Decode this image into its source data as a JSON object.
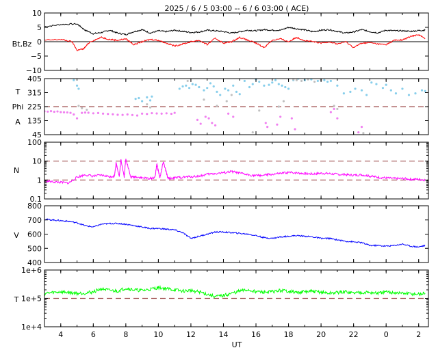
{
  "title": "2025 /  6 /  5   03:00 -- 6 /  6   03:00 ( ACE)",
  "xlabel": "UT",
  "x_ticks": [
    "4",
    "6",
    "8",
    "10",
    "12",
    "14",
    "16",
    "18",
    "20",
    "22",
    "0",
    "2"
  ],
  "x_tick_hours": [
    4,
    6,
    8,
    10,
    12,
    14,
    16,
    18,
    20,
    22,
    24,
    26
  ],
  "x_range_hours": [
    3,
    26.6
  ],
  "colors": {
    "bt": "#000000",
    "bz": "#ff0000",
    "theta": "#f080f0",
    "phi": "#87ceeb",
    "phi_gray": "#c0c0c0",
    "density": "#ff00ff",
    "speed": "#0000ff",
    "temperature": "#00ff00",
    "ref_line": "#a05050",
    "zero_line": "#000000"
  },
  "chart_data": [
    {
      "type": "line",
      "panel": "Bt,Bz",
      "ylabel": "Bt,Bz",
      "ylim": [
        -10,
        10
      ],
      "y_ticks": [
        "10",
        "5",
        "0",
        "−5",
        "−10"
      ],
      "y_tick_values": [
        10,
        5,
        0,
        -5,
        -10
      ],
      "zero_line": 0,
      "series": [
        {
          "name": "Bt",
          "color_key": "bt",
          "x": [
            3,
            4,
            5,
            5.5,
            6,
            6.5,
            7,
            7.5,
            8,
            8.5,
            9,
            9.5,
            10,
            10.5,
            11,
            11.5,
            12,
            12.5,
            13,
            13.5,
            14,
            14.5,
            15,
            15.5,
            16,
            16.5,
            17,
            17.5,
            18,
            18.5,
            19,
            19.5,
            20,
            20.5,
            21,
            21.5,
            22,
            22.5,
            23,
            23.5,
            24,
            24.5,
            25,
            25.5,
            26,
            26.4
          ],
          "y": [
            5.2,
            6,
            6.2,
            4,
            2.8,
            3.2,
            4,
            3,
            2.5,
            3.5,
            4.2,
            3,
            3.8,
            3.5,
            4,
            3.6,
            3.2,
            3.4,
            4,
            3.8,
            3.5,
            3,
            3.5,
            4,
            3.8,
            4.2,
            4,
            4,
            5,
            4.5,
            4.1,
            3.5,
            4,
            4.2,
            3.6,
            3,
            3.4,
            4.2,
            3.5,
            3.1,
            4,
            3.8,
            3.8,
            3.6,
            3.9,
            4
          ]
        },
        {
          "name": "Bz",
          "color_key": "bz",
          "x": [
            3,
            4,
            4.7,
            5,
            5.4,
            5.8,
            6.5,
            7,
            7.5,
            8,
            8.5,
            9,
            9.5,
            10,
            10.5,
            11,
            11.5,
            12,
            12.5,
            13,
            13.5,
            14,
            14.5,
            15,
            15.5,
            16,
            16.5,
            17,
            17.5,
            18,
            18.5,
            19,
            19.5,
            20,
            20.5,
            21,
            21.5,
            22,
            22.5,
            23,
            23.5,
            24,
            24.5,
            25,
            25.5,
            26,
            26.4
          ],
          "y": [
            0.5,
            0.8,
            0,
            -3,
            -2.5,
            0,
            1.5,
            0.8,
            0.5,
            1,
            -1,
            0,
            0.8,
            0.5,
            -0.5,
            -1.5,
            -0.8,
            0,
            0.5,
            -1,
            1.2,
            -0.5,
            0,
            1.5,
            0.5,
            -0.5,
            -2,
            0.5,
            1,
            0,
            1.5,
            0.4,
            0,
            -0.5,
            0,
            -0.8,
            0,
            -2,
            -0.5,
            -0.3,
            -0.8,
            -1,
            0.5,
            0.6,
            1.8,
            2.5,
            1
          ]
        }
      ]
    },
    {
      "type": "scatter",
      "panel": "T / Phi / A",
      "ylabel": [
        "T",
        "Phi",
        "A"
      ],
      "ylim": [
        45,
        405
      ],
      "y_ticks": [
        "405",
        "315",
        "225",
        "135",
        "45"
      ],
      "y_tick_values": [
        405,
        315,
        225,
        135,
        45
      ],
      "ref_lines": [
        225
      ],
      "series": [
        {
          "name": "theta",
          "color_key": "theta",
          "x": [
            3,
            3.2,
            3.4,
            3.6,
            3.8,
            4,
            4.2,
            4.4,
            4.6,
            4.8,
            5.0,
            5.3,
            5.5,
            5.7,
            6,
            6.3,
            6.6,
            6.9,
            7.2,
            7.5,
            7.8,
            8.1,
            8.4,
            8.7,
            9,
            9.3,
            9.6,
            9.9,
            10.2,
            10.5,
            10.8,
            11.0,
            12.4,
            12.6,
            12.9,
            13.1,
            13.3,
            13.5,
            14.3,
            14.6,
            16.6,
            16.7,
            17.3,
            17.5,
            18.2,
            18.4,
            20.6,
            20.8,
            21,
            22.3,
            22.5
          ],
          "y": [
            195,
            193,
            196,
            192,
            194,
            190,
            189,
            188,
            185,
            175,
            150,
            185,
            187,
            186,
            182,
            184,
            180,
            178,
            176,
            173,
            172,
            175,
            171,
            168,
            180,
            178,
            183,
            181,
            180,
            182,
            179,
            185,
            140,
            115,
            160,
            150,
            120,
            105,
            180,
            160,
            120,
            95,
            110,
            160,
            150,
            80,
            190,
            210,
            150,
            60,
            95
          ]
        },
        {
          "name": "phi",
          "color_key": "phi",
          "x": [
            4.8,
            5.0,
            5.1,
            8.6,
            8.8,
            9,
            9.3,
            9.5,
            9.6,
            11.3,
            11.5,
            11.7,
            11.9,
            12.1,
            12.3,
            12.5,
            12.8,
            13.0,
            13.2,
            13.4,
            13.6,
            13.8,
            14.1,
            14.3,
            14.6,
            14.8,
            15.0,
            15.3,
            15.6,
            15.8,
            16,
            16.2,
            16.5,
            16.8,
            17.0,
            17.2,
            17.4,
            17.6,
            17.8,
            18.0,
            18.3,
            18.6,
            19.0,
            19.4,
            19.8,
            20.2,
            20.4,
            20.6,
            21.0,
            21.4,
            21.8,
            22.1,
            22.5,
            22.8,
            23.1,
            23.4,
            23.8,
            24.0,
            24.3,
            24.6,
            25.0,
            25.4,
            25.8,
            26.2,
            26.4
          ],
          "y": [
            395,
            360,
            340,
            275,
            280,
            260,
            285,
            265,
            290,
            340,
            355,
            360,
            345,
            370,
            365,
            350,
            330,
            345,
            375,
            355,
            320,
            300,
            340,
            330,
            360,
            320,
            305,
            390,
            350,
            370,
            400,
            385,
            360,
            365,
            380,
            395,
            370,
            360,
            350,
            340,
            395,
            405,
            395,
            400,
            390,
            395,
            385,
            390,
            360,
            310,
            320,
            340,
            330,
            300,
            380,
            370,
            345,
            365,
            330,
            310,
            340,
            300,
            310,
            330,
            325
          ]
        },
        {
          "name": "phi",
          "color_key": "phi_gray",
          "x": [
            5.1,
            5.3,
            5.6,
            9.3,
            9.5,
            11.8,
            12.8,
            13.6,
            14.2,
            14.5,
            15.8,
            16.2,
            17.4,
            17.7,
            18.3,
            18.5,
            18.8,
            19.2,
            19.6,
            20.0,
            20.8,
            21.0,
            22.6
          ],
          "y": [
            230,
            215,
            205,
            240,
            220,
            390,
            270,
            230,
            260,
            300,
            60,
            200,
            225,
            260,
            400,
            395,
            390,
            400,
            385,
            395,
            230,
            210,
            55
          ]
        }
      ]
    },
    {
      "type": "line",
      "panel": "N",
      "ylabel": "N",
      "yscale": "log",
      "ylim": [
        0.1,
        100
      ],
      "y_ticks": [
        "100",
        "10",
        "1",
        "0.1"
      ],
      "y_tick_values": [
        100,
        10,
        1,
        0.1
      ],
      "ref_lines": [
        1,
        10
      ],
      "series": [
        {
          "name": "N",
          "color_key": "density",
          "x": [
            3,
            3.5,
            4,
            4.5,
            5,
            5.5,
            6,
            6.5,
            7,
            7.3,
            7.4,
            7.6,
            7.7,
            7.9,
            8,
            8.3,
            8.6,
            9,
            9.5,
            9.8,
            9.9,
            10.1,
            10.3,
            10.6,
            11,
            11.5,
            12,
            12.5,
            13,
            13.5,
            14,
            14.5,
            15,
            15.5,
            16,
            16.5,
            17,
            17.5,
            18,
            18.5,
            19,
            19.5,
            20,
            20.5,
            21,
            21.5,
            22,
            22.5,
            23,
            23.5,
            24,
            24.5,
            25,
            25.5,
            26,
            26.4
          ],
          "y": [
            0.9,
            0.8,
            0.75,
            0.7,
            1.4,
            1.9,
            1.6,
            1.8,
            1.5,
            1.6,
            8,
            1.6,
            12,
            1.5,
            14,
            1.4,
            1.5,
            1.3,
            1.2,
            1.4,
            7,
            1.3,
            9,
            1.2,
            1.3,
            1.4,
            1.5,
            1.6,
            2,
            2.2,
            2.4,
            2.8,
            2.3,
            1.9,
            1.7,
            1.8,
            2,
            2.2,
            2.5,
            2.4,
            2.2,
            2.1,
            2.3,
            2.2,
            2,
            1.9,
            1.8,
            1.9,
            1.6,
            1.4,
            1.3,
            1.2,
            1.2,
            1.1,
            1.1,
            1.0
          ]
        }
      ]
    },
    {
      "type": "line",
      "panel": "V",
      "ylabel": "V",
      "ylim": [
        400,
        800
      ],
      "y_ticks": [
        "800",
        "700",
        "600",
        "500",
        "400"
      ],
      "y_tick_values": [
        800,
        700,
        600,
        500,
        400
      ],
      "series": [
        {
          "name": "V",
          "color_key": "speed",
          "x": [
            3,
            3.5,
            4,
            4.5,
            5,
            5.5,
            6,
            6.5,
            7,
            7.5,
            8,
            8.5,
            9,
            9.5,
            10,
            10.5,
            11,
            11.5,
            12,
            12.5,
            13,
            13.5,
            14,
            14.5,
            15,
            15.5,
            16,
            16.5,
            17,
            17.5,
            18,
            18.5,
            19,
            19.5,
            20,
            20.5,
            21,
            21.5,
            22,
            22.5,
            23,
            23.5,
            24,
            24.5,
            25,
            25.5,
            26,
            26.4
          ],
          "y": [
            705,
            700,
            695,
            690,
            680,
            660,
            650,
            670,
            675,
            675,
            670,
            660,
            650,
            640,
            640,
            635,
            630,
            610,
            570,
            585,
            600,
            615,
            615,
            610,
            605,
            600,
            590,
            575,
            570,
            580,
            585,
            590,
            585,
            580,
            570,
            570,
            560,
            550,
            545,
            540,
            520,
            520,
            515,
            520,
            530,
            515,
            510,
            520
          ]
        }
      ]
    },
    {
      "type": "line",
      "panel": "T",
      "ylabel": "T",
      "yscale": "log",
      "ylim": [
        10000,
        1000000
      ],
      "y_ticks": [
        "1e+6",
        "1e+5",
        "1e+4"
      ],
      "y_tick_values": [
        1000000,
        100000,
        10000
      ],
      "ref_lines": [
        100000
      ],
      "series": [
        {
          "name": "T",
          "color_key": "temperature",
          "x": [
            3,
            3.5,
            4,
            4.5,
            5,
            5.5,
            6,
            6.5,
            7,
            7.5,
            8,
            8.5,
            9,
            9.5,
            10,
            10.5,
            11,
            11.5,
            12,
            12.5,
            13,
            13.5,
            14,
            14.5,
            15,
            15.5,
            16,
            16.5,
            17,
            17.5,
            18,
            18.5,
            19,
            19.5,
            20,
            20.5,
            21,
            21.5,
            22,
            22.5,
            23,
            23.5,
            24,
            24.5,
            25,
            25.5,
            26,
            26.4
          ],
          "y": [
            150000,
            160000,
            170000,
            160000,
            150000,
            155000,
            170000,
            220000,
            190000,
            180000,
            230000,
            200000,
            190000,
            210000,
            240000,
            220000,
            200000,
            180000,
            190000,
            170000,
            140000,
            115000,
            125000,
            150000,
            180000,
            200000,
            175000,
            165000,
            170000,
            190000,
            180000,
            160000,
            170000,
            175000,
            165000,
            150000,
            160000,
            170000,
            155000,
            165000,
            160000,
            150000,
            165000,
            160000,
            150000,
            145000,
            140000,
            150000
          ]
        }
      ]
    }
  ]
}
